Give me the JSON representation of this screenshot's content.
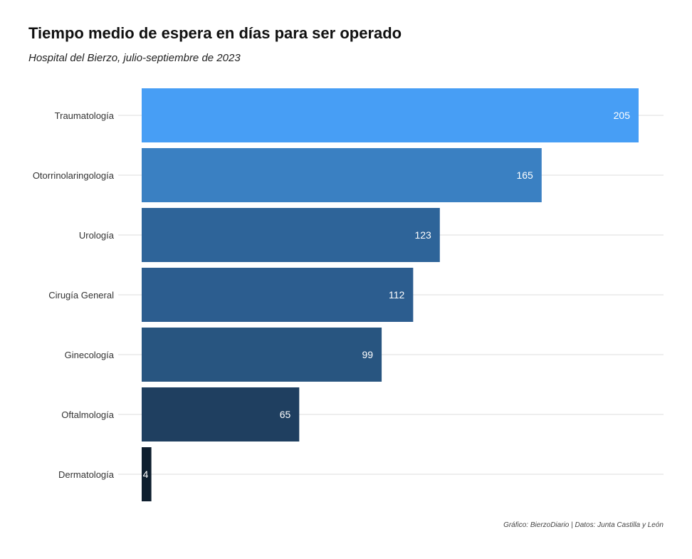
{
  "chart_data": {
    "type": "bar",
    "orientation": "horizontal",
    "title": "Tiempo medio de espera en días para ser operado",
    "subtitle": "Hospital del Bierzo, julio-septiembre de 2023",
    "caption": "Gráfico: BierzoDiario | Datos: Junta Castilla y León",
    "xlabel": "",
    "ylabel": "",
    "categories": [
      "Traumatología",
      "Otorrinolaringología",
      "Urología",
      "Cirugía General",
      "Ginecología",
      "Oftalmología",
      "Dermatología"
    ],
    "values": [
      205,
      165,
      123,
      112,
      99,
      65,
      4
    ],
    "value_labels": [
      "205",
      "165",
      "123",
      "112",
      "99",
      "65",
      "4"
    ],
    "xlim": [
      0,
      215
    ],
    "grid": true,
    "legend": "none",
    "bar_colors": [
      "#479ef5",
      "#3a80c2",
      "#2e6499",
      "#2c5d8f",
      "#285580",
      "#1f3f60",
      "#0e1e2e"
    ],
    "value_label_color": "#ffffff",
    "gridline_color": "#dcdcdc",
    "text_color": "#333333"
  }
}
